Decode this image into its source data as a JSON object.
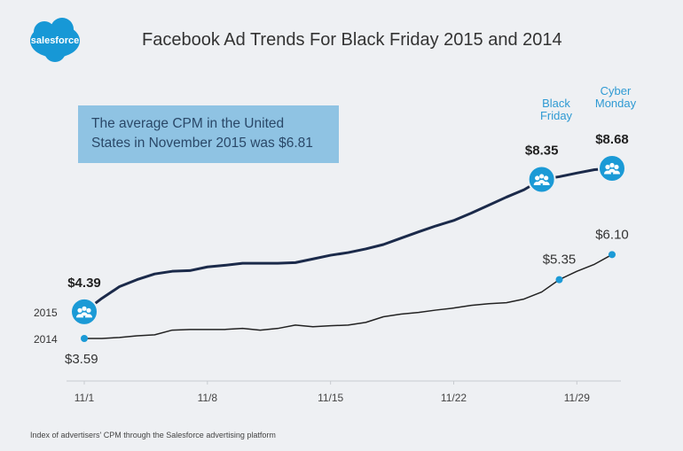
{
  "chart_data": {
    "type": "line",
    "title": "Facebook Ad Trends For Black Friday 2015 and 2014",
    "logo": "salesforce",
    "note": "The average CPM in the United States in November 2015 was $6.81",
    "annotations": [
      "Black Friday",
      "Cyber Monday"
    ],
    "footnote": "Index of advertisers' CPM through the Salesforce advertising platform",
    "categories": [
      "11/1",
      null,
      null,
      null,
      null,
      null,
      null,
      "11/8",
      null,
      null,
      null,
      null,
      null,
      null,
      "11/15",
      null,
      null,
      null,
      null,
      null,
      null,
      "11/22",
      null,
      null,
      null,
      null,
      null,
      null,
      "11/29",
      null,
      null
    ],
    "series": [
      {
        "name": "2015",
        "color": "#1b2a4a",
        "values": [
          4.39,
          4.79,
          5.14,
          5.35,
          5.52,
          5.6,
          5.62,
          5.73,
          5.78,
          5.84,
          5.84,
          5.84,
          5.86,
          5.97,
          6.08,
          6.16,
          6.27,
          6.4,
          6.59,
          6.78,
          6.96,
          7.12,
          7.34,
          7.58,
          7.82,
          8.04,
          8.35,
          8.43,
          8.54,
          8.64,
          8.68
        ],
        "value_labels": [
          "$4.39",
          null,
          null,
          null,
          null,
          null,
          null,
          null,
          null,
          null,
          null,
          null,
          null,
          null,
          null,
          null,
          null,
          null,
          null,
          null,
          null,
          null,
          null,
          null,
          null,
          null,
          "$8.35",
          null,
          null,
          null,
          "$8.68"
        ]
      },
      {
        "name": "2014",
        "color": "#222222",
        "values": [
          3.59,
          3.59,
          3.62,
          3.67,
          3.7,
          3.84,
          3.86,
          3.86,
          3.86,
          3.89,
          3.84,
          3.89,
          3.99,
          3.94,
          3.97,
          3.99,
          4.07,
          4.24,
          4.32,
          4.37,
          4.44,
          4.5,
          4.58,
          4.63,
          4.66,
          4.77,
          4.98,
          5.35,
          5.6,
          5.81,
          6.1
        ],
        "value_labels": [
          "$3.59",
          null,
          null,
          null,
          null,
          null,
          null,
          null,
          null,
          null,
          null,
          null,
          null,
          null,
          null,
          null,
          null,
          null,
          null,
          null,
          null,
          null,
          null,
          null,
          null,
          null,
          null,
          "$5.35",
          null,
          null,
          "$6.10"
        ]
      }
    ],
    "marker_color": "#1b9ad6"
  }
}
